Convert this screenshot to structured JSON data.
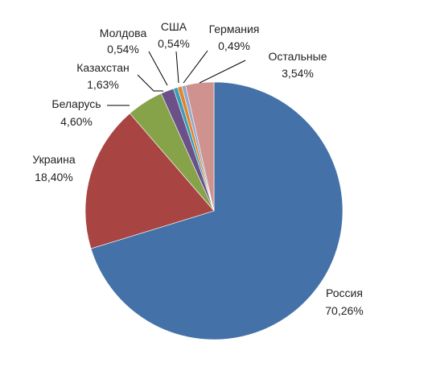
{
  "chart_data": {
    "type": "pie",
    "start_angle_deg": 0,
    "direction": "clockwise",
    "slices": [
      {
        "name": "Россия",
        "value": 70.26,
        "label": "70,26%",
        "color": "#4472a8"
      },
      {
        "name": "Украина",
        "value": 18.4,
        "label": "18,40%",
        "color": "#a84543"
      },
      {
        "name": "Беларусь",
        "value": 4.6,
        "label": "4,60%",
        "color": "#86a349"
      },
      {
        "name": "Казахстан",
        "value": 1.63,
        "label": "1,63%",
        "color": "#6b5188"
      },
      {
        "name": "Молдова",
        "value": 0.54,
        "label": "0,54%",
        "color": "#3b9cb6"
      },
      {
        "name": "США",
        "value": 0.54,
        "label": "0,54%",
        "color": "#e0862f"
      },
      {
        "name": "Германия",
        "value": 0.49,
        "label": "0,49%",
        "color": "#94a8cf"
      },
      {
        "name": "Остальные",
        "value": 3.54,
        "label": "3,54%",
        "color": "#d0928f"
      }
    ]
  }
}
